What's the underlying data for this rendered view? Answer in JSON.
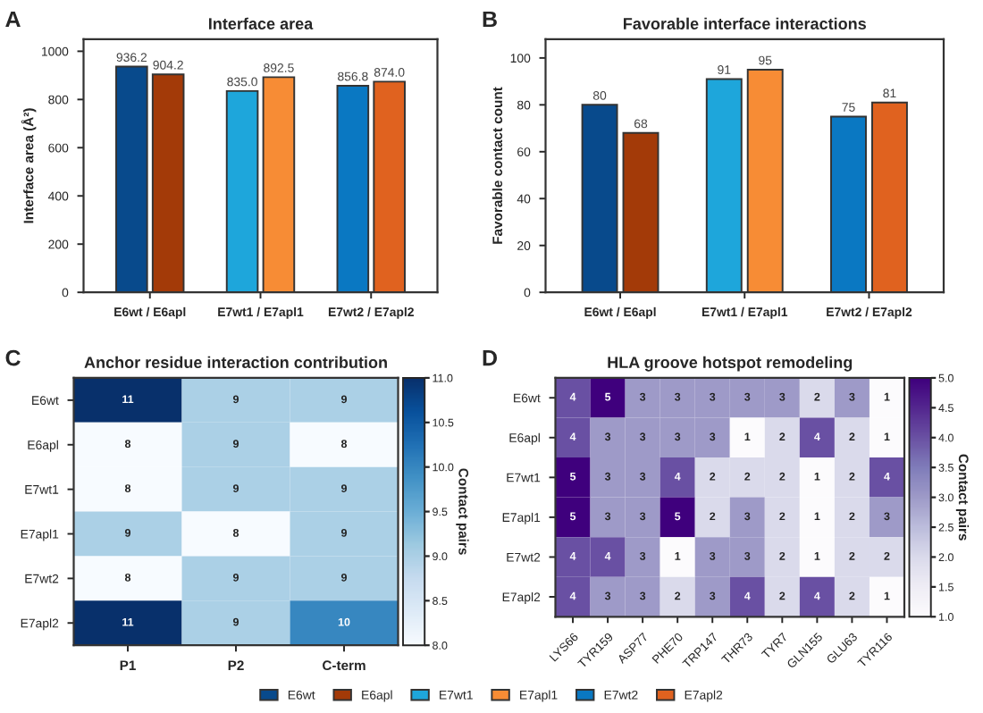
{
  "chart_data": [
    {
      "type": "bar",
      "title": "Interface area",
      "ylabel": "Interface area (Å²)",
      "annotations": [
        "A"
      ],
      "categories": [
        "E6wt / E6apl",
        "E7wt1 / E7apl1",
        "E7wt2 / E7apl2"
      ],
      "series": [
        {
          "name": "E6wt",
          "color": "#084a8c",
          "values": [
            936.2,
            null,
            null
          ]
        },
        {
          "name": "E6apl",
          "color": "#a33a08",
          "values": [
            904.2,
            null,
            null
          ]
        },
        {
          "name": "E7wt1",
          "color": "#1ea6db",
          "values": [
            null,
            835.0,
            null
          ]
        },
        {
          "name": "E7apl1",
          "color": "#f78c35",
          "values": [
            null,
            892.5,
            null
          ]
        },
        {
          "name": "E7wt2",
          "color": "#0a78c2",
          "values": [
            null,
            null,
            856.8
          ]
        },
        {
          "name": "E7apl2",
          "color": "#e0621f",
          "values": [
            null,
            null,
            874.0
          ]
        }
      ],
      "value_labels": [
        "936.2",
        "904.2",
        "835.0",
        "892.5",
        "856.8",
        "874.0"
      ],
      "ylim": [
        0,
        1050
      ],
      "yticks": [
        0,
        200,
        400,
        600,
        800,
        1000
      ],
      "legend": "bottom"
    },
    {
      "type": "bar",
      "title": "Favorable interface interactions",
      "ylabel": "Favorable contact count",
      "annotations": [
        "B"
      ],
      "categories": [
        "E6wt / E6apl",
        "E7wt1 / E7apl1",
        "E7wt2 / E7apl2"
      ],
      "series": [
        {
          "color": "#084a8c",
          "values": [
            80,
            null,
            null
          ]
        },
        {
          "color": "#a33a08",
          "values": [
            68,
            null,
            null
          ]
        },
        {
          "color": "#1ea6db",
          "values": [
            null,
            91,
            null
          ]
        },
        {
          "color": "#f78c35",
          "values": [
            null,
            95,
            null
          ]
        },
        {
          "color": "#0a78c2",
          "values": [
            null,
            null,
            75
          ]
        },
        {
          "color": "#e0621f",
          "values": [
            null,
            null,
            81
          ]
        }
      ],
      "data_labels": true,
      "ylim": [
        0,
        108
      ],
      "yticks": [
        0,
        20,
        40,
        60,
        80,
        100
      ]
    },
    {
      "type": "heatmap",
      "title": "Anchor residue interaction contribution",
      "clabel": "Contact pairs",
      "annotations": [
        "C"
      ],
      "categories": [
        "P1",
        "P2",
        "C-term"
      ],
      "y_categories": [
        "E6wt",
        "E6apl",
        "E7wt1",
        "E7apl1",
        "E7wt2",
        "E7apl2"
      ],
      "cells": [
        [
          11,
          9,
          9
        ],
        [
          8,
          9,
          8
        ],
        [
          8,
          9,
          9
        ],
        [
          9,
          8,
          9
        ],
        [
          8,
          9,
          9
        ],
        [
          11,
          9,
          10
        ]
      ],
      "data_labels": true,
      "clim": [
        8.0,
        11.0
      ],
      "cticks": [
        {
          "value": 8,
          "label": "8.0"
        },
        {
          "value": 8.5,
          "label": "8.5"
        },
        {
          "value": 9,
          "label": "9.0"
        },
        {
          "value": 9.5,
          "label": "9.5"
        },
        {
          "value": 10,
          "label": "10.0"
        },
        {
          "value": 10.5,
          "label": "10.5"
        },
        {
          "value": 11,
          "label": "11.0"
        }
      ]
    },
    {
      "type": "heatmap",
      "title": "HLA groove hotspot remodeling",
      "clabel": "Contact pairs",
      "annotations": [
        "D"
      ],
      "categories": [
        "LYS66",
        "TYR159",
        "ASP77",
        "PHE70",
        "TRP147",
        "THR73",
        "TYR7",
        "GLN155",
        "GLU63",
        "TYR116"
      ],
      "y_categories": [
        "E6wt",
        "E6apl",
        "E7wt1",
        "E7apl1",
        "E7wt2",
        "E7apl2"
      ],
      "cells": [
        [
          4,
          5,
          3,
          3,
          3,
          3,
          3,
          2,
          3,
          1
        ],
        [
          4,
          3,
          3,
          3,
          3,
          1,
          2,
          4,
          2,
          1
        ],
        [
          5,
          3,
          3,
          4,
          2,
          2,
          2,
          1,
          2,
          4
        ],
        [
          5,
          3,
          3,
          5,
          2,
          3,
          2,
          1,
          2,
          3
        ],
        [
          4,
          4,
          3,
          1,
          3,
          3,
          2,
          1,
          2,
          2
        ],
        [
          4,
          3,
          3,
          2,
          3,
          4,
          2,
          4,
          2,
          1
        ]
      ],
      "data_labels": true,
      "clim": [
        1.0,
        5.0
      ],
      "cticks": [
        {
          "value": 1,
          "label": "1.0"
        },
        {
          "value": 1.5,
          "label": "1.5"
        },
        {
          "value": 2,
          "label": "2.0"
        },
        {
          "value": 2.5,
          "label": "2.5"
        },
        {
          "value": 3,
          "label": "3.0"
        },
        {
          "value": 3.5,
          "label": "3.5"
        },
        {
          "value": 4,
          "label": "4.0"
        },
        {
          "value": 4.5,
          "label": "4.5"
        },
        {
          "value": 5,
          "label": "5.0"
        }
      ]
    }
  ]
}
